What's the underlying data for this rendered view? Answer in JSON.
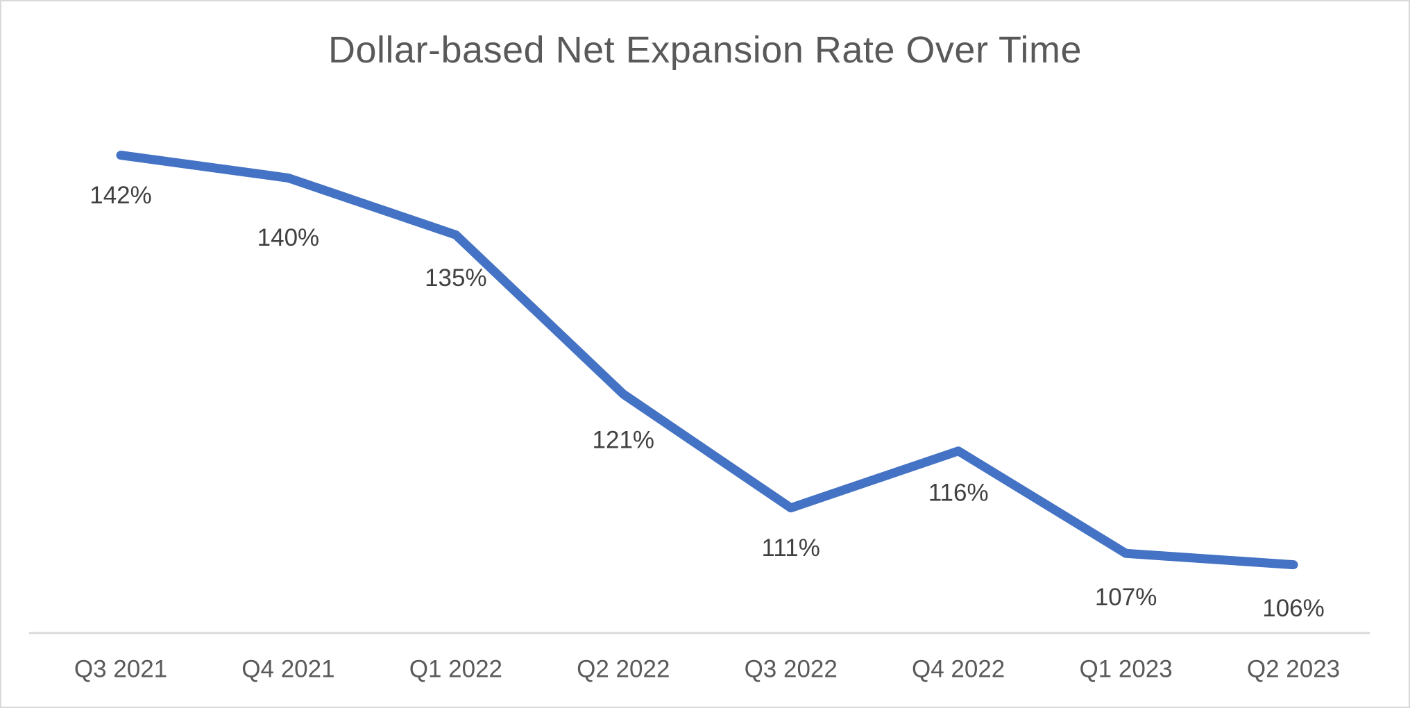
{
  "chart_data": {
    "type": "line",
    "title": "Dollar-based Net Expansion Rate Over Time",
    "categories": [
      "Q3 2021",
      "Q4 2021",
      "Q1 2022",
      "Q2 2022",
      "Q3 2022",
      "Q4 2022",
      "Q1 2023",
      "Q2 2023"
    ],
    "values": [
      142,
      140,
      135,
      121,
      111,
      116,
      107,
      106
    ],
    "data_labels": [
      "142%",
      "140%",
      "135%",
      "121%",
      "111%",
      "116%",
      "107%",
      "106%"
    ],
    "xlabel": "",
    "ylabel": "",
    "ylim": [
      100,
      145
    ],
    "grid": false,
    "legend": "none",
    "y_axis_visible": false,
    "x_axis_line_visible": true,
    "data_label_position": "below",
    "colors": {
      "line": "#4472C4",
      "data_label": "#404040",
      "tick_label": "#595959",
      "title": "#595959",
      "axis_line": "#D9D9D9",
      "background": "#FFFFFF",
      "border": "#D9D9D9"
    }
  }
}
